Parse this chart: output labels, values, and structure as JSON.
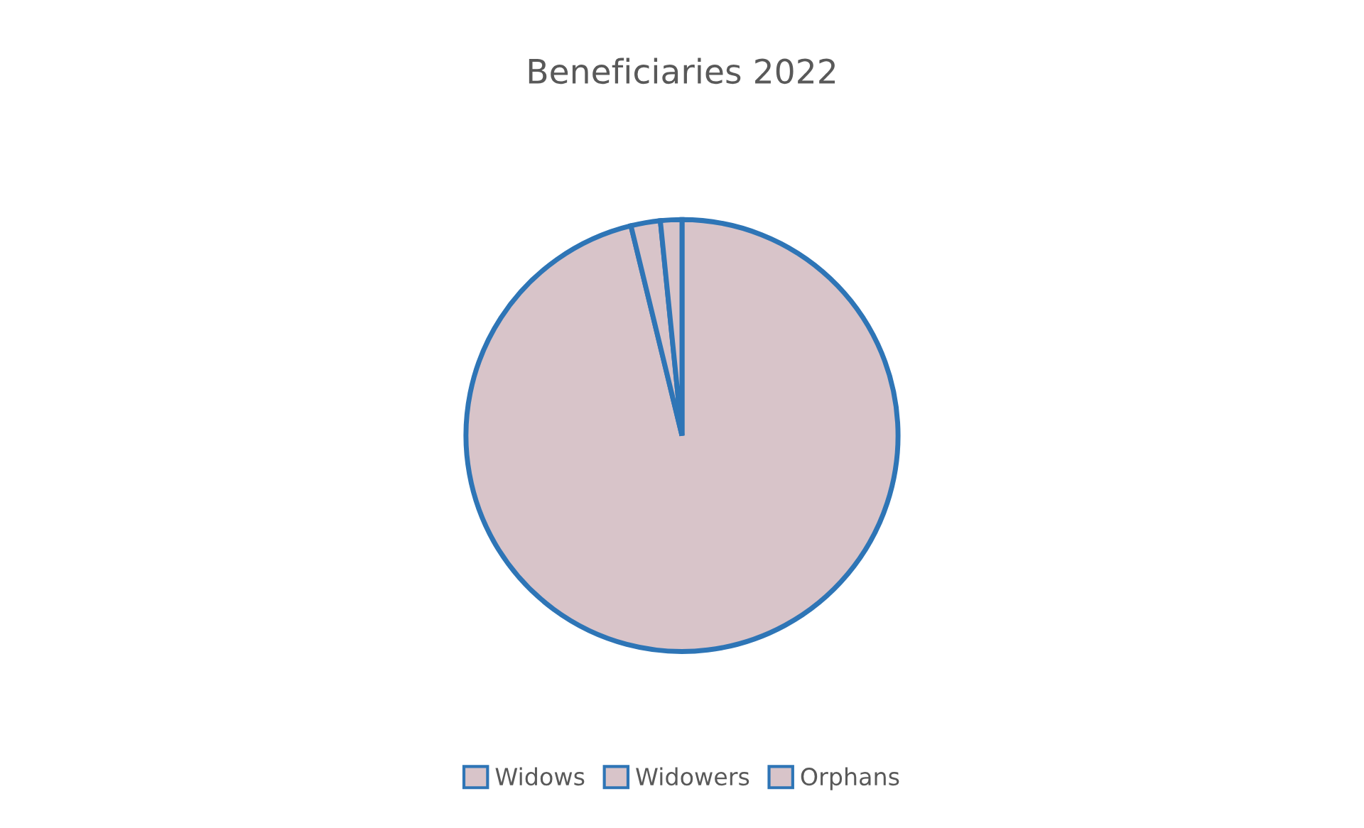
{
  "chart_data": {
    "type": "pie",
    "title": "Beneficiaries 2022",
    "categories": [
      "Widows",
      "Widowers",
      "Orphans"
    ],
    "values": [
      96.2,
      2.2,
      1.6
    ],
    "colors": [
      "#d8c4c9",
      "#d8c4c9",
      "#d8c4c9"
    ],
    "legend": "bottom"
  }
}
